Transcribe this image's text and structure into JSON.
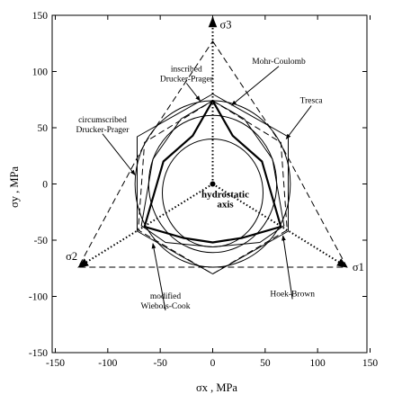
{
  "chart_data": {
    "type": "line",
    "title": "",
    "xlabel": "σx , MPa",
    "ylabel": "σy , MPa",
    "xlim": [
      -150,
      150
    ],
    "ylim": [
      -150,
      150
    ],
    "x_ticks": [
      -150,
      -100,
      -50,
      0,
      50,
      100,
      150
    ],
    "y_ticks": [
      -150,
      -100,
      -50,
      0,
      50,
      100,
      150
    ],
    "grid": false,
    "legend": "none",
    "stress_axes": [
      {
        "name": "σ3",
        "from": [
          0,
          0
        ],
        "to": [
          0,
          148
        ]
      },
      {
        "name": "σ2",
        "from": [
          0,
          0
        ],
        "to": [
          -128,
          -74
        ]
      },
      {
        "name": "σ1",
        "from": [
          0,
          0
        ],
        "to": [
          128,
          -74
        ]
      }
    ],
    "axis_labels_text": {
      "sigma1": "σ1",
      "sigma2": "σ2",
      "sigma3": "σ3"
    },
    "series": [
      {
        "name": "Tresca",
        "style": "dashed",
        "closed": true,
        "x": [
          0,
          64,
          128,
          64,
          -64,
          -128,
          -64
        ],
        "y": [
          127,
          37,
          -74,
          -74,
          -74,
          -74,
          37
        ]
      },
      {
        "name": "Mohr-Coulomb",
        "style": "dashed",
        "closed": true,
        "x": [
          0,
          65,
          71,
          0,
          -71,
          -65
        ],
        "y": [
          74,
          37,
          -41,
          -80,
          -41,
          37
        ]
      },
      {
        "name": "circumscribed Drucker-Prager",
        "style": "solid",
        "shape": "circle",
        "center": [
          0,
          0
        ],
        "radius": 74
      },
      {
        "name": "inscribed Drucker-Prager",
        "style": "solid",
        "shape": "circle",
        "center": [
          0,
          0
        ],
        "radius": 61
      },
      {
        "name": "modified Wiebols-Cook",
        "style": "solid",
        "closed": true,
        "x": [
          0,
          30,
          57,
          68,
          45,
          0,
          -45,
          -68,
          -57,
          -30
        ],
        "y": [
          74,
          58,
          22,
          -37,
          -52,
          -56,
          -52,
          -37,
          22,
          58
        ]
      },
      {
        "name": "Hoek-Brown",
        "style": "solid-bold",
        "closed": true,
        "x": [
          0,
          19,
          47,
          65,
          28,
          0,
          -28,
          -65,
          -47,
          -19
        ],
        "y": [
          74,
          43,
          20,
          -38,
          -48,
          -52,
          -48,
          -38,
          20,
          43
        ]
      },
      {
        "name": "tension circle",
        "style": "solid",
        "shape": "circle",
        "center": [
          0,
          -8
        ],
        "radius": 48
      },
      {
        "name": "hexagon",
        "style": "solid",
        "closed": true,
        "x": [
          0,
          72,
          72,
          0,
          -72,
          -72
        ],
        "y": [
          80,
          42,
          -42,
          -80,
          -42,
          42
        ]
      }
    ],
    "annotations": [
      {
        "text": [
          "inscribed",
          "Drucker-Prager"
        ],
        "label_xy": [
          -25,
          100
        ],
        "arrow_to": [
          -12,
          74
        ]
      },
      {
        "text": [
          "Mohr-Coulomb"
        ],
        "label_xy": [
          63,
          107
        ],
        "arrow_to": [
          18,
          70
        ]
      },
      {
        "text": [
          "Tresca"
        ],
        "label_xy": [
          94,
          72
        ],
        "arrow_to": [
          70,
          40
        ]
      },
      {
        "text": [
          "circumscribed",
          "Drucker-Prager"
        ],
        "label_xy": [
          -105,
          55
        ],
        "arrow_to": [
          -74,
          8
        ]
      },
      {
        "text": [
          "hydrostatic",
          "axis"
        ],
        "label_xy": [
          12,
          -12
        ],
        "arrow_to": null
      },
      {
        "text": [
          "modified",
          "Wiebols-Cook"
        ],
        "label_xy": [
          -45,
          -102
        ],
        "arrow_to": [
          -57,
          -53
        ]
      },
      {
        "text": [
          "Hoek-Brown"
        ],
        "label_xy": [
          76,
          -100
        ],
        "arrow_to": [
          67,
          -46
        ]
      }
    ]
  }
}
